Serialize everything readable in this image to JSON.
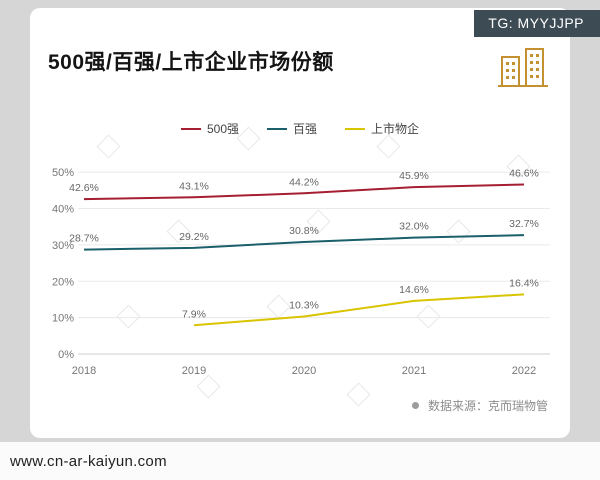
{
  "badge": {
    "label": "TG: MYYJJPP"
  },
  "source": {
    "text": "数据来源：克而瑞物管"
  },
  "footer": {
    "url": "www.cn-ar-kaiyun.com"
  },
  "icons": {
    "building": "building-icon",
    "bullet": "dot-icon"
  },
  "colors": {
    "badge_bg": "#3d4b54",
    "series_500": "#a51e32",
    "series_100": "#1a5f6a",
    "series_listed": "#d9c400"
  },
  "chart_data": {
    "type": "line",
    "title": "500强/百强/上市企业市场份额",
    "x": [
      2018,
      2019,
      2020,
      2021,
      2022
    ],
    "series": [
      {
        "name": "500强",
        "color": "#a51e32",
        "values": [
          42.6,
          43.1,
          44.2,
          45.9,
          46.6
        ]
      },
      {
        "name": "百强",
        "color": "#1a5f6a",
        "values": [
          28.7,
          29.2,
          30.8,
          32.0,
          32.7
        ]
      },
      {
        "name": "上市物企",
        "color": "#d9c400",
        "values": [
          null,
          7.9,
          10.3,
          14.6,
          16.4
        ]
      }
    ],
    "ylim": [
      0,
      55
    ],
    "yticks": [
      0,
      10,
      20,
      30,
      40,
      50
    ],
    "ytick_format": "%",
    "xlabel": "",
    "ylabel": "",
    "grid": true,
    "legend_position": "top",
    "data_labels": true
  }
}
